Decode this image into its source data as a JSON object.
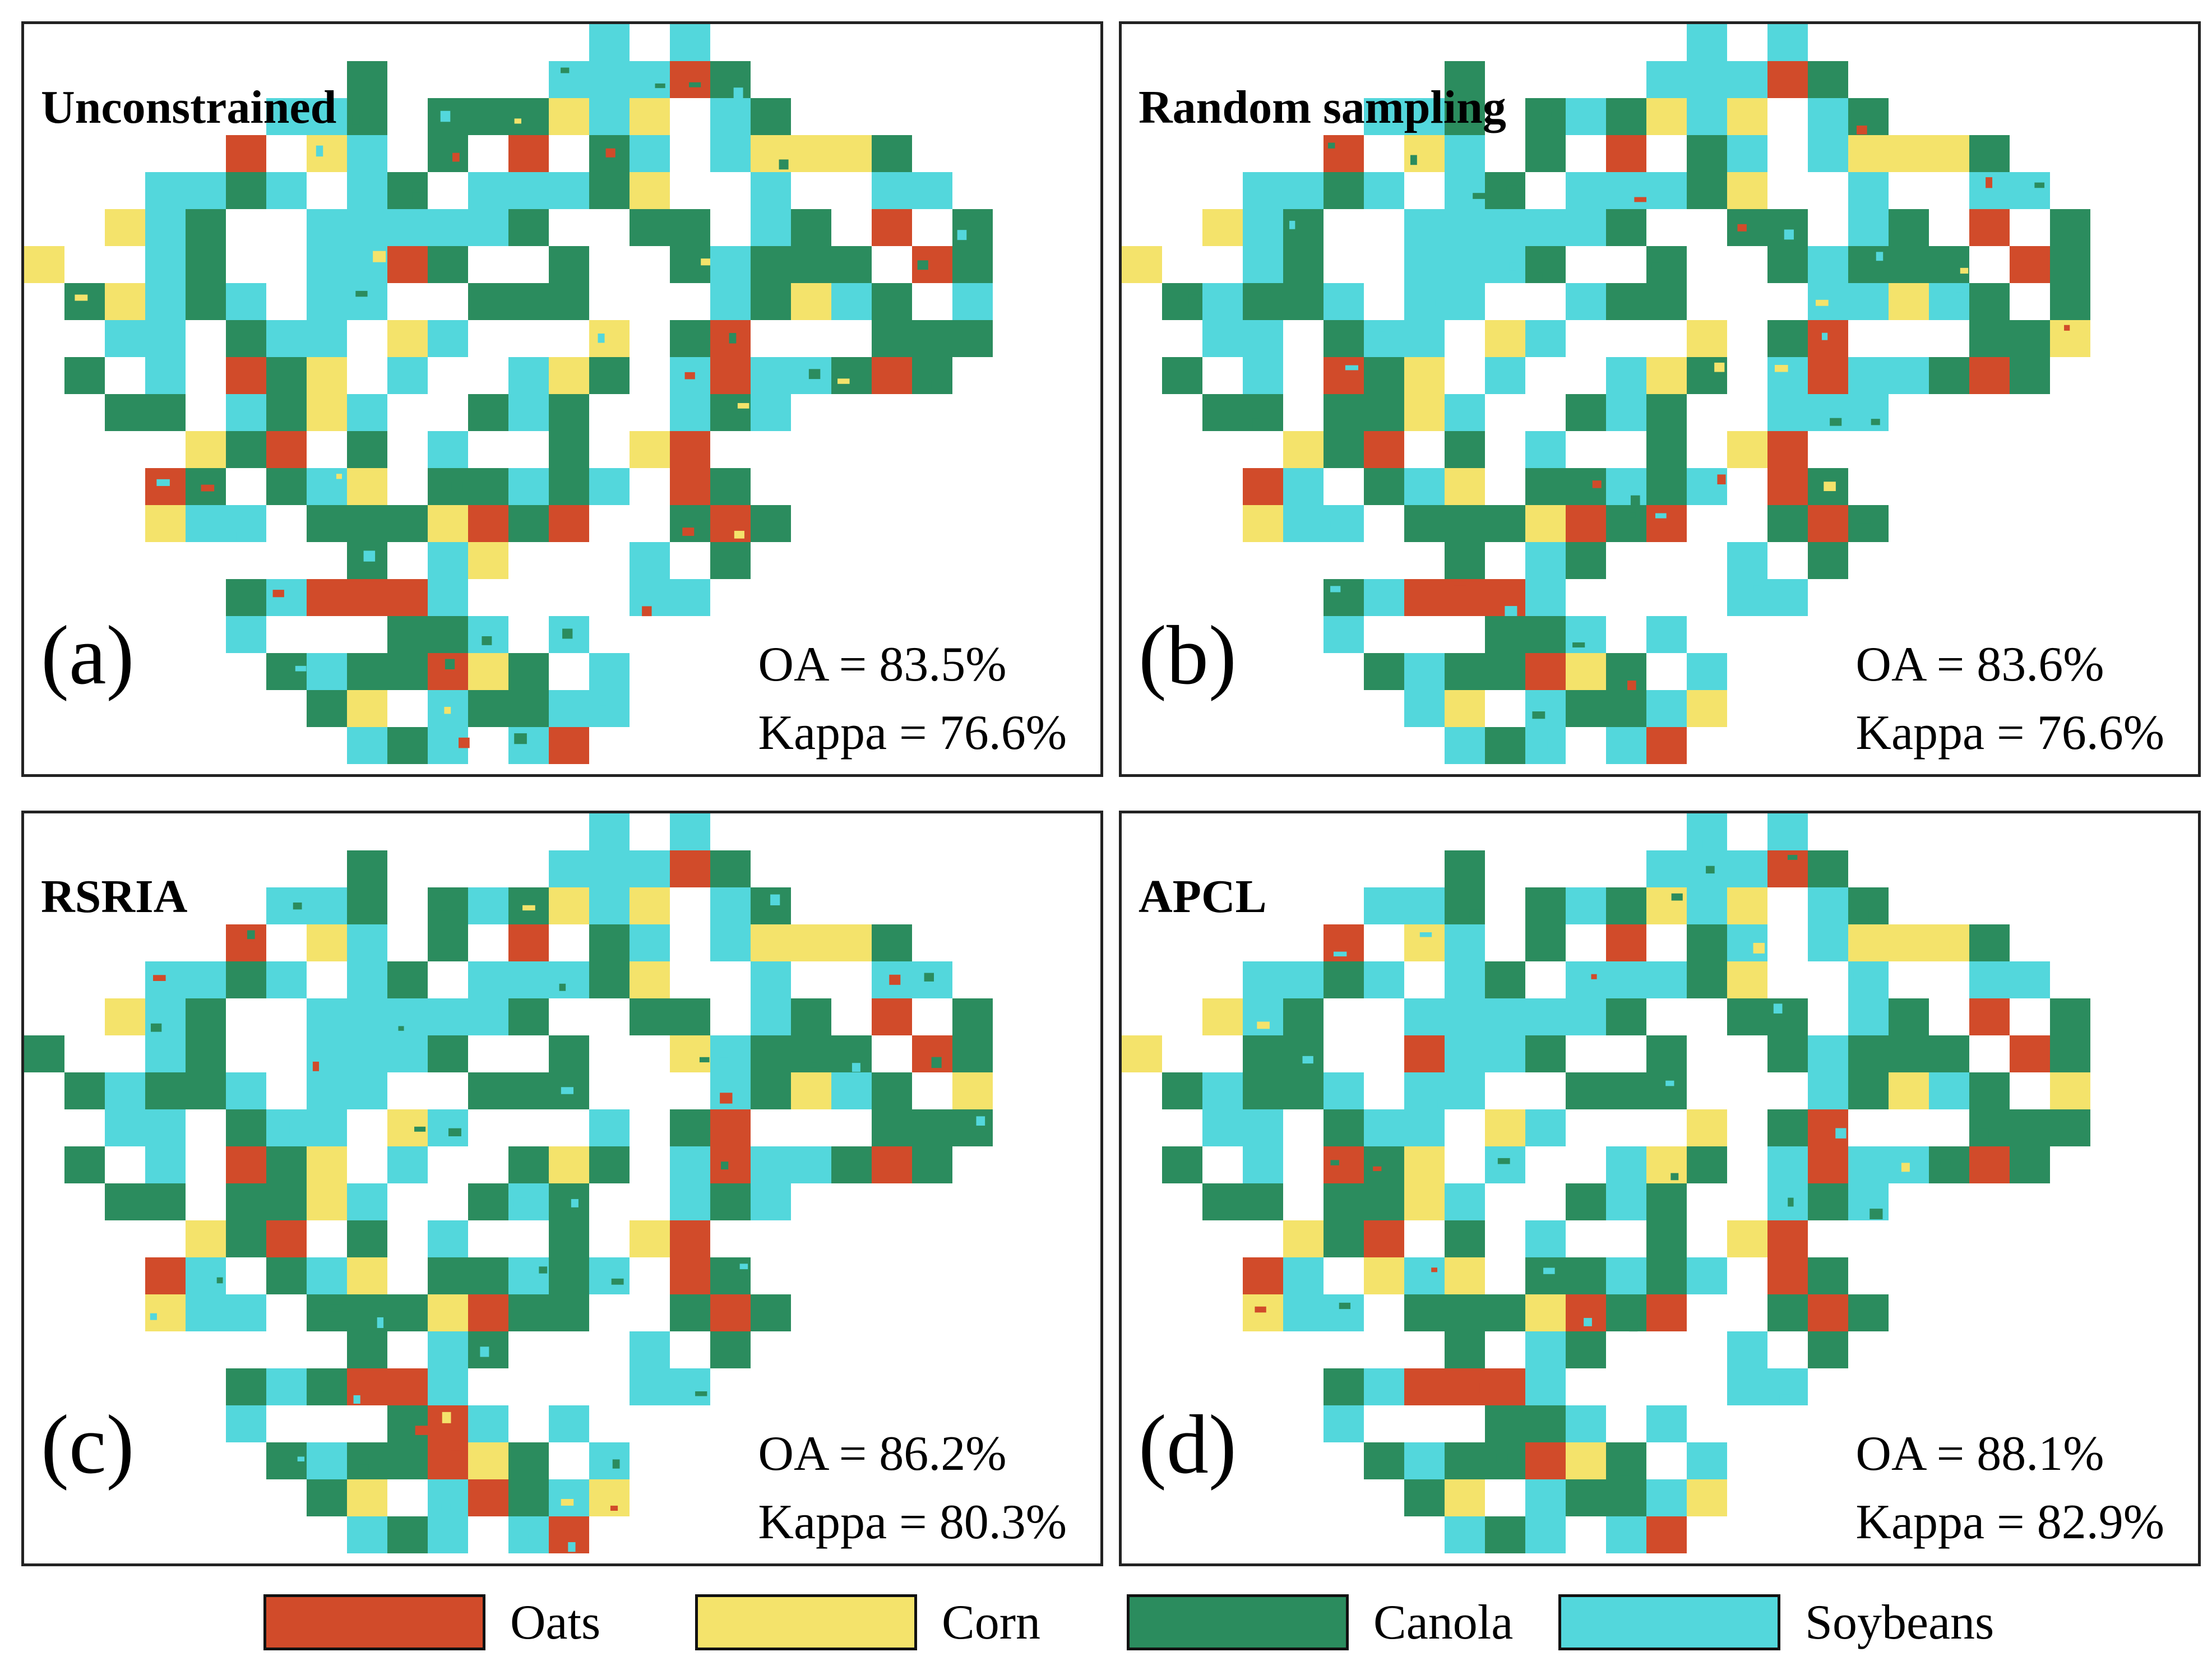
{
  "colors": {
    "oats": "#D14B2A",
    "corn": "#F4E36B",
    "canola": "#2B8C5E",
    "soybeans": "#53D7DC"
  },
  "panels": [
    {
      "id": "a",
      "title": "Unconstrained",
      "letter": "(a)",
      "oa": "OA = 83.5%",
      "kappa": "Kappa = 76.6%"
    },
    {
      "id": "b",
      "title": "Random sampling",
      "letter": "(b)",
      "oa": "OA = 83.6%",
      "kappa": "Kappa = 76.6%"
    },
    {
      "id": "c",
      "title": "RSRIA",
      "letter": "(c)",
      "oa": "OA = 86.2%",
      "kappa": "Kappa = 80.3%"
    },
    {
      "id": "d",
      "title": "APCL",
      "letter": "(d)",
      "oa": "OA = 88.1%",
      "kappa": "Kappa = 82.9%"
    }
  ],
  "legend": [
    {
      "label": "Oats",
      "color_key": "oats"
    },
    {
      "label": "Corn",
      "color_key": "corn"
    },
    {
      "label": "Canola",
      "color_key": "canola"
    },
    {
      "label": "Soybeans",
      "color_key": "soybeans"
    }
  ]
}
